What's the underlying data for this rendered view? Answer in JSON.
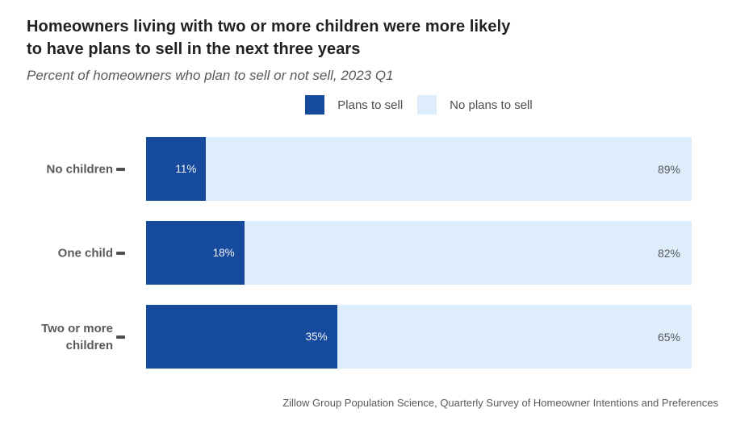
{
  "header": {
    "title_line1": "Homeowners living with two or more children were more likely",
    "title_line2": "to have plans to sell in the next three years",
    "subtitle": "Percent of homeowners who plan to sell or not sell, 2023 Q1"
  },
  "legend": {
    "items": [
      {
        "label": "Plans to sell",
        "color": "#164a9d"
      },
      {
        "label": "No plans to sell",
        "color": "#ddedfb"
      }
    ]
  },
  "rows": [
    {
      "label": "No children",
      "plan_text": "11%",
      "noplan_text": "89%"
    },
    {
      "label": "One child",
      "plan_text": "18%",
      "noplan_text": "82%"
    },
    {
      "label": "Two or more children",
      "plan_text": "35%",
      "noplan_text": "65%"
    }
  ],
  "footer": {
    "source": "Zillow Group Population Science, Quarterly Survey of Homeowner Intentions and Preferences"
  },
  "colors": {
    "plans_to_sell": "#164a9d",
    "no_plans_to_sell": "#ddedfb",
    "text_gray": "#58595b",
    "title": "#231f20"
  },
  "chart_data": {
    "type": "bar",
    "orientation": "horizontal",
    "stacked": true,
    "categories": [
      "No children",
      "One child",
      "Two or more children"
    ],
    "series": [
      {
        "name": "Plans to sell",
        "values": [
          11,
          18,
          35
        ],
        "color": "#164a9d"
      },
      {
        "name": "No plans to sell",
        "values": [
          89,
          82,
          65
        ],
        "color": "#ddedfb"
      }
    ],
    "title": "Homeowners living with two or more children were more likely to have plans to sell in the next three years",
    "subtitle": "Percent of homeowners who plan to sell or not sell, 2023 Q1",
    "value_suffix": "%",
    "xlim": [
      0,
      100
    ],
    "grid": false,
    "legend_position": "top-center",
    "value_labels": "inside-end (dark series, white) and inside-end (light series, gray)",
    "source": "Zillow Group Population Science, Quarterly Survey of Homeowner Intentions and Preferences"
  }
}
